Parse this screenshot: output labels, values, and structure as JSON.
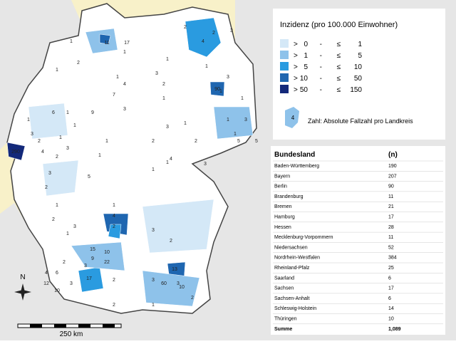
{
  "map": {
    "labels": [
      "2",
      "4",
      "3",
      "2",
      "11",
      "17",
      "1",
      "1",
      "1",
      "2",
      "1",
      "4",
      "1",
      "7",
      "3",
      "1",
      "3",
      "1",
      "6",
      "1",
      "9",
      "1",
      "3",
      "2",
      "1",
      "3",
      "4",
      "2",
      "290",
      "3",
      "2",
      "1",
      "2",
      "4",
      "1",
      "3",
      "1",
      "3",
      "1",
      "1",
      "2",
      "1",
      "3",
      "1",
      "5",
      "1",
      "1",
      "5",
      "3",
      "2",
      "1",
      "3",
      "1",
      "2",
      "1",
      "4",
      "2",
      "15",
      "10",
      "9",
      "22",
      "3",
      "2",
      "6",
      "4",
      "12",
      "17",
      "3",
      "2",
      "10",
      "3",
      "60",
      "3",
      "90",
      "10",
      "2",
      "3",
      "13",
      "1",
      "2",
      "2",
      "1",
      "5"
    ],
    "compass": "N",
    "scale": "250 km"
  },
  "legend": {
    "title": "Inzidenz (pro 100.000 Einwohner)",
    "rows": [
      [
        ">",
        "0",
        "-",
        "≤",
        "1"
      ],
      [
        ">",
        "1",
        "-",
        "≤",
        "5"
      ],
      [
        ">",
        "5",
        "-",
        "≤",
        "10"
      ],
      [
        ">",
        "10",
        "-",
        "≤",
        "50"
      ],
      [
        ">",
        "50",
        "-",
        "≤",
        "150"
      ]
    ],
    "colors": [
      "#d4e8f7",
      "#8ec2ea",
      "#2a9be0",
      "#1f66b0",
      "#13297a"
    ],
    "note_icon": "4",
    "note": "Zahl: Absolute Fallzahl pro Landkreis"
  },
  "table": {
    "header": [
      "Bundesland",
      "(n)"
    ],
    "rows": [
      [
        "Baden-Württemberg",
        "190"
      ],
      [
        "Bayern",
        "207"
      ],
      [
        "Berlin",
        "90"
      ],
      [
        "Brandenburg",
        "11"
      ],
      [
        "Bremen",
        "21"
      ],
      [
        "Hamburg",
        "17"
      ],
      [
        "Hessen",
        "28"
      ],
      [
        "Mecklenburg-Vorpommern",
        "11"
      ],
      [
        "Niedersachsen",
        "52"
      ],
      [
        "Nordrhein-Westfalen",
        "384"
      ],
      [
        "Rheinland-Pfalz",
        "25"
      ],
      [
        "Saarland",
        "6"
      ],
      [
        "Sachsen",
        "17"
      ],
      [
        "Sachsen-Anhalt",
        "6"
      ],
      [
        "Schleswig-Holstein",
        "14"
      ],
      [
        "Thüringen",
        "10"
      ],
      [
        "Summe",
        "1,089"
      ]
    ]
  }
}
